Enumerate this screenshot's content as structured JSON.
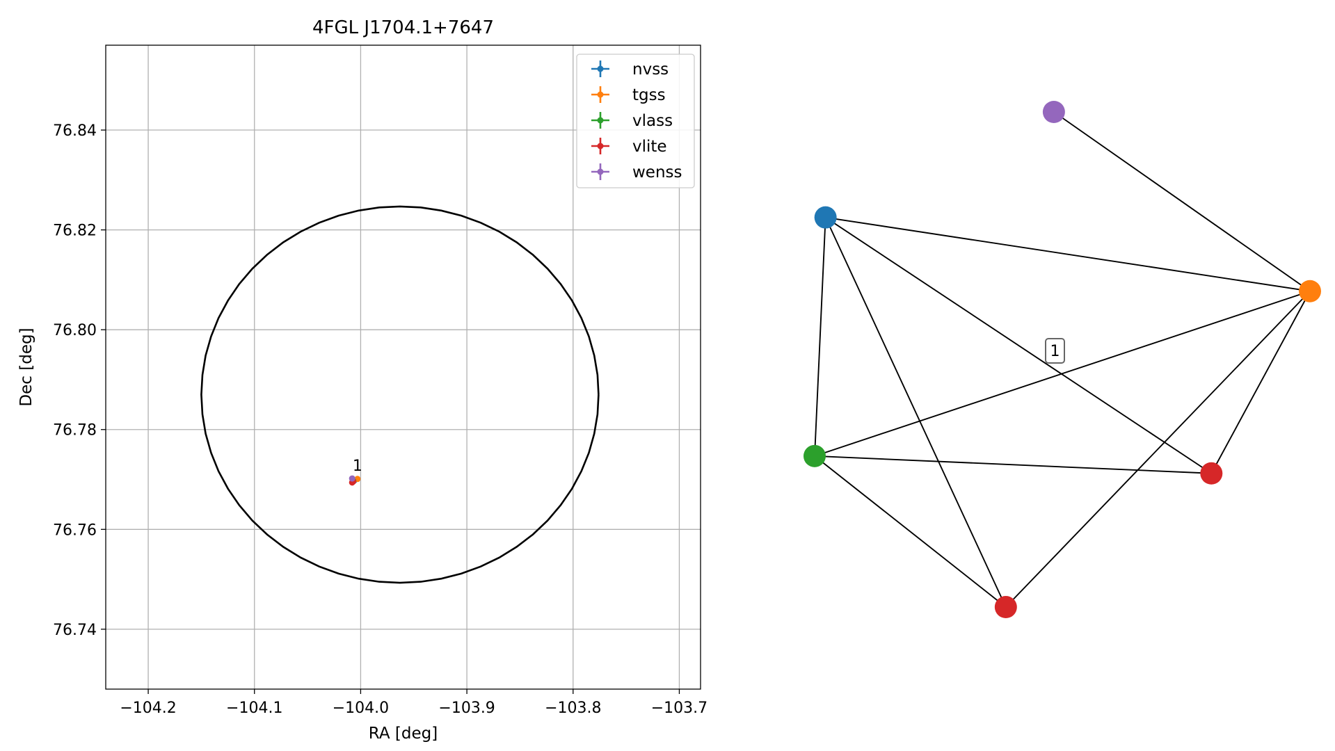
{
  "chart_data": [
    {
      "type": "scatter",
      "title": "4FGL J1704.1+7647",
      "xlabel": "RA [deg]",
      "ylabel": "Dec [deg]",
      "xlim": [
        -104.24,
        -103.68
      ],
      "ylim": [
        76.728,
        76.857
      ],
      "x_ticks": [
        -104.2,
        -104.1,
        -104.0,
        -103.9,
        -103.8,
        -103.7
      ],
      "x_tick_labels": [
        "−104.2",
        "−104.1",
        "−104.0",
        "−103.9",
        "−103.8",
        "−103.7"
      ],
      "y_ticks": [
        76.74,
        76.76,
        76.78,
        76.8,
        76.82,
        76.84
      ],
      "y_tick_labels": [
        "76.74",
        "76.76",
        "76.78",
        "76.80",
        "76.82",
        "76.84"
      ],
      "grid": true,
      "legend_position": "top-right",
      "series": [
        {
          "name": "nvss",
          "color": "#1f77b4",
          "points": [
            {
              "x": -104.006,
              "y": 76.7698
            }
          ]
        },
        {
          "name": "tgss",
          "color": "#ff7f0e",
          "points": [
            {
              "x": -104.003,
              "y": 76.7701
            }
          ]
        },
        {
          "name": "vlass",
          "color": "#2ca02c",
          "points": [
            {
              "x": -104.007,
              "y": 76.7697
            }
          ]
        },
        {
          "name": "vlite",
          "color": "#d62728",
          "points": [
            {
              "x": -104.008,
              "y": 76.7694
            },
            {
              "x": -104.007,
              "y": 76.7696
            }
          ]
        },
        {
          "name": "wenss",
          "color": "#9467bd",
          "points": [
            {
              "x": -104.008,
              "y": 76.7702
            }
          ]
        }
      ],
      "ellipse": {
        "center_x": -103.963,
        "center_y": 76.787,
        "semi_axis_ra": 0.187,
        "semi_axis_dec": 0.0377,
        "color": "#000000"
      },
      "annotations": [
        {
          "text": "1",
          "x": -104.003,
          "y": 76.7712
        }
      ]
    },
    {
      "type": "network",
      "nodes": [
        {
          "id": "nvss",
          "color": "#1f77b4",
          "x": 0.022,
          "y": 0.787
        },
        {
          "id": "tgss",
          "color": "#ff7f0e",
          "x": 1.0,
          "y": 0.638
        },
        {
          "id": "vlass",
          "color": "#2ca02c",
          "x": 0.0,
          "y": 0.305
        },
        {
          "id": "vlite_a",
          "color": "#d62728",
          "x": 0.801,
          "y": 0.27
        },
        {
          "id": "vlite_b",
          "color": "#d62728",
          "x": 0.386,
          "y": 0.0
        },
        {
          "id": "wenss",
          "color": "#9467bd",
          "x": 0.483,
          "y": 1.0
        }
      ],
      "edges": [
        [
          "nvss",
          "tgss"
        ],
        [
          "nvss",
          "vlass"
        ],
        [
          "nvss",
          "vlite_b"
        ],
        [
          "nvss",
          "vlite_a"
        ],
        [
          "wenss",
          "tgss"
        ],
        [
          "tgss",
          "vlass"
        ],
        [
          "tgss",
          "vlite_b"
        ],
        [
          "tgss",
          "vlite_a"
        ],
        [
          "vlass",
          "vlite_a"
        ],
        [
          "vlass",
          "vlite_b"
        ]
      ],
      "label": "1"
    }
  ]
}
